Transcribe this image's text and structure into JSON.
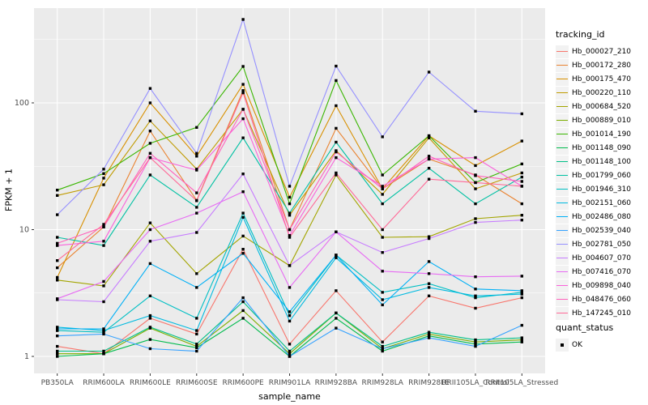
{
  "chart_data": {
    "type": "line",
    "title": "",
    "xlabel": "sample_name",
    "ylabel": "FPKM + 1",
    "y_scale": "log10",
    "ylim": [
      1,
      500
    ],
    "y_ticks": [
      1,
      10,
      100
    ],
    "grid": true,
    "panel_bg": "#EBEBEB",
    "grid_color": "#FFFFFF",
    "tick_text_color": "#4D4D4D",
    "point_color": "#000000",
    "legend_position": "right",
    "categories": [
      "PB350LA",
      "RRIM600LA",
      "RRIM600LE",
      "RRIM600SE",
      "RRIM600PE",
      "RRIM901LA",
      "RRIM928BA",
      "RRIM928LA",
      "RRIM928LE",
      "RRII105LA_Control",
      "RRII105LA_Stressed"
    ],
    "series": [
      {
        "name": "Hb_000027_210",
        "color": "#F8766D",
        "values": [
          1.2,
          1.05,
          2.0,
          1.5,
          7.0,
          1.25,
          3.3,
          1.3,
          3.0,
          2.4,
          2.9
        ]
      },
      {
        "name": "Hb_000172_280",
        "color": "#EA8331",
        "values": [
          5.0,
          10.5,
          60,
          17,
          125,
          10,
          63,
          21,
          36,
          27,
          16
        ]
      },
      {
        "name": "Hb_000175_470",
        "color": "#D89000",
        "values": [
          4.2,
          25.5,
          100,
          38,
          140,
          18,
          95,
          21,
          55,
          32,
          50
        ]
      },
      {
        "name": "Hb_000220_110",
        "color": "#C09B00",
        "values": [
          18.6,
          22.6,
          72,
          30,
          89,
          13,
          42,
          19,
          53,
          21,
          28
        ]
      },
      {
        "name": "Hb_000684_520",
        "color": "#A3A500",
        "values": [
          4.0,
          3.6,
          11.3,
          4.5,
          8.9,
          5.2,
          27,
          8.7,
          8.8,
          12.2,
          13
        ]
      },
      {
        "name": "Hb_000889_010",
        "color": "#7CAE00",
        "values": [
          1.05,
          1.05,
          1.67,
          1.2,
          2.3,
          1.05,
          2.2,
          1.15,
          1.5,
          1.3,
          1.35
        ]
      },
      {
        "name": "Hb_001014_190",
        "color": "#39B600",
        "values": [
          20.5,
          27.7,
          48,
          64,
          194,
          16,
          150,
          27,
          55,
          23.5,
          33
        ]
      },
      {
        "name": "Hb_001148_090",
        "color": "#00BB4E",
        "values": [
          1.0,
          1.05,
          1.36,
          1.17,
          2.0,
          1.0,
          2.0,
          1.1,
          1.45,
          1.25,
          1.3
        ]
      },
      {
        "name": "Hb_001148_100",
        "color": "#00C087",
        "values": [
          1.1,
          1.1,
          1.7,
          1.25,
          2.7,
          1.1,
          2.2,
          1.2,
          1.55,
          1.35,
          1.4
        ]
      },
      {
        "name": "Hb_001799_060",
        "color": "#00C1A3",
        "values": [
          8.7,
          7.5,
          27,
          15,
          53,
          13.5,
          49,
          16,
          30.5,
          16,
          26
        ]
      },
      {
        "name": "Hb_001946_310",
        "color": "#00BFC4",
        "values": [
          1.6,
          1.55,
          3.0,
          2.0,
          13.5,
          2.1,
          6.3,
          3.2,
          3.75,
          2.9,
          3.2
        ]
      },
      {
        "name": "Hb_002151_060",
        "color": "#00BAE0",
        "values": [
          1.7,
          1.6,
          2.1,
          1.6,
          12.5,
          1.9,
          6.0,
          2.8,
          3.5,
          3.0,
          3.1
        ]
      },
      {
        "name": "Hb_002486_080",
        "color": "#00B0F6",
        "values": [
          1.65,
          1.65,
          5.4,
          3.5,
          6.5,
          2.25,
          6.3,
          2.55,
          5.6,
          3.4,
          3.3
        ]
      },
      {
        "name": "Hb_002539_040",
        "color": "#35A2FF",
        "values": [
          1.45,
          1.5,
          1.15,
          1.1,
          2.9,
          1.0,
          1.67,
          1.15,
          1.4,
          1.2,
          1.76
        ]
      },
      {
        "name": "Hb_002781_050",
        "color": "#9590FF",
        "values": [
          13.1,
          30,
          130,
          40,
          455,
          22,
          195,
          54,
          175,
          86,
          82
        ]
      },
      {
        "name": "Hb_004607_070",
        "color": "#C77CFF",
        "values": [
          2.8,
          2.7,
          8.1,
          9.5,
          27.5,
          5.2,
          9.6,
          6.6,
          8.5,
          11.4,
          11.9
        ]
      },
      {
        "name": "Hb_007416_070",
        "color": "#E76BF3",
        "values": [
          2.85,
          3.9,
          10,
          13.5,
          19.9,
          3.5,
          9.6,
          4.7,
          4.5,
          4.25,
          4.3
        ]
      },
      {
        "name": "Hb_009898_040",
        "color": "#FA62DB",
        "values": [
          7.5,
          8.1,
          37,
          29.5,
          75,
          9.0,
          37,
          22,
          36,
          37,
          22
        ]
      },
      {
        "name": "Hb_048476_060",
        "color": "#FF62BC",
        "values": [
          7.8,
          10.5,
          40,
          19.5,
          89,
          10,
          41,
          21,
          38,
          26.7,
          24
        ]
      },
      {
        "name": "Hb_147245_010",
        "color": "#FF6A98",
        "values": [
          5.7,
          11,
          37,
          16.9,
          120,
          8.7,
          28,
          10,
          25,
          23.5,
          22
        ]
      }
    ]
  },
  "legend": {
    "title": "tracking_id",
    "status_title": "quant_status",
    "status_label": "OK"
  },
  "axes": {
    "y_title": "FPKM + 1",
    "x_title": "sample_name"
  }
}
